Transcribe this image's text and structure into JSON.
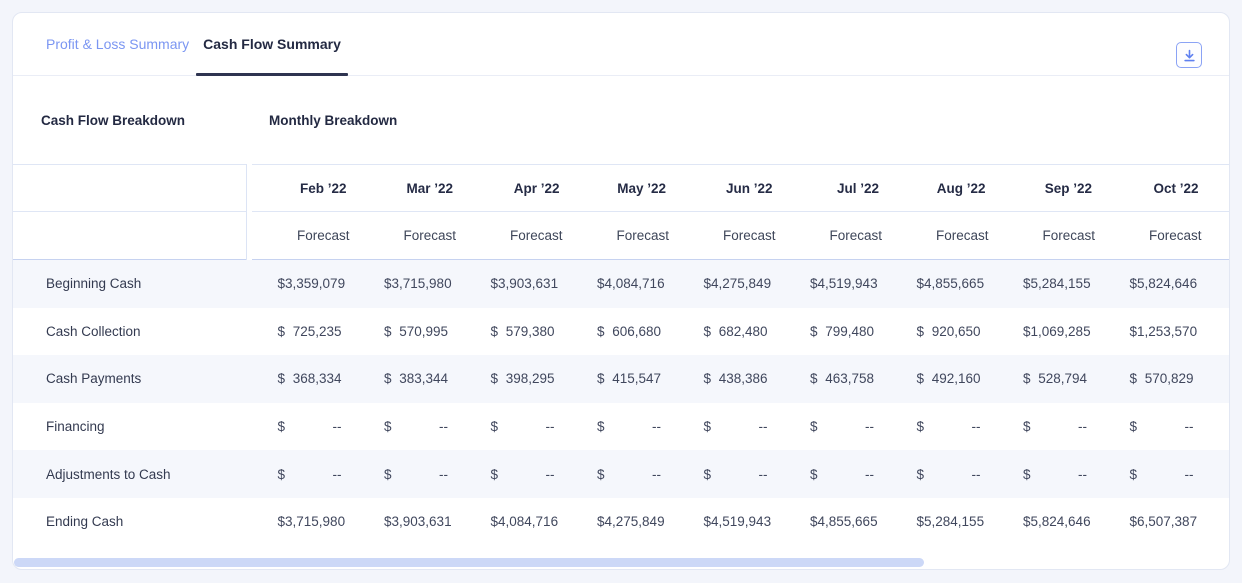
{
  "tabs": {
    "items": [
      {
        "label": "Profit & Loss Summary",
        "active": false
      },
      {
        "label": "Cash Flow Summary",
        "active": true
      }
    ]
  },
  "toolbar": {
    "download_icon": "download-icon"
  },
  "sections": {
    "left_title": "Cash Flow Breakdown",
    "right_title": "Monthly Breakdown"
  },
  "table": {
    "currency": "$",
    "empty_value": "--",
    "columns": [
      {
        "month": "Feb ’22",
        "sub": "Forecast"
      },
      {
        "month": "Mar ’22",
        "sub": "Forecast"
      },
      {
        "month": "Apr ’22",
        "sub": "Forecast"
      },
      {
        "month": "May ’22",
        "sub": "Forecast"
      },
      {
        "month": "Jun ’22",
        "sub": "Forecast"
      },
      {
        "month": "Jul ’22",
        "sub": "Forecast"
      },
      {
        "month": "Aug ’22",
        "sub": "Forecast"
      },
      {
        "month": "Sep ’22",
        "sub": "Forecast"
      },
      {
        "month": "Oct ’22",
        "sub": "Forecast"
      }
    ],
    "rows": [
      {
        "label": "Beginning Cash",
        "values": [
          "3,359,079",
          "3,715,980",
          "3,903,631",
          "4,084,716",
          "4,275,849",
          "4,519,943",
          "4,855,665",
          "5,284,155",
          "5,824,646"
        ]
      },
      {
        "label": "Cash Collection",
        "values": [
          "725,235",
          "570,995",
          "579,380",
          "606,680",
          "682,480",
          "799,480",
          "920,650",
          "1,069,285",
          "1,253,570"
        ]
      },
      {
        "label": "Cash Payments",
        "values": [
          "368,334",
          "383,344",
          "398,295",
          "415,547",
          "438,386",
          "463,758",
          "492,160",
          "528,794",
          "570,829"
        ]
      },
      {
        "label": "Financing",
        "values": [
          "--",
          "--",
          "--",
          "--",
          "--",
          "--",
          "--",
          "--",
          "--"
        ]
      },
      {
        "label": "Adjustments to Cash",
        "values": [
          "--",
          "--",
          "--",
          "--",
          "--",
          "--",
          "--",
          "--",
          "--"
        ]
      },
      {
        "label": "Ending Cash",
        "values": [
          "3,715,980",
          "3,903,631",
          "4,084,716",
          "4,275,849",
          "4,519,943",
          "4,855,665",
          "5,284,155",
          "5,824,646",
          "6,507,387"
        ]
      }
    ]
  }
}
